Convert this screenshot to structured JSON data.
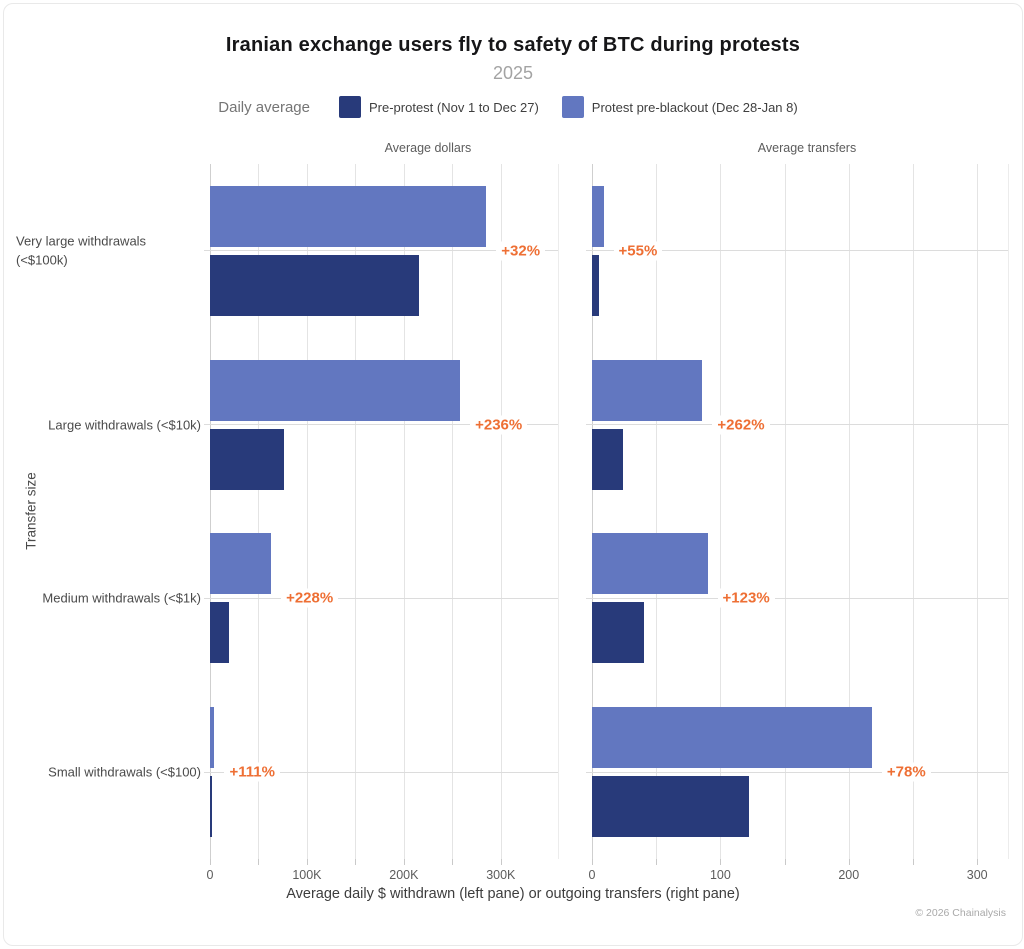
{
  "header": {
    "title": "Iranian exchange users fly to safety of BTC during protests",
    "subtitle": "2025"
  },
  "legend": {
    "label": "Daily average",
    "items": [
      {
        "label": "Pre-protest (Nov 1 to Dec 27)",
        "color": "#283a7a"
      },
      {
        "label": "Protest pre-blackout (Dec 28-Jan 8)",
        "color": "#6277c0"
      }
    ]
  },
  "chart_data": {
    "type": "bar",
    "orientation": "horizontal",
    "title": "Iranian exchange users fly to safety of BTC during protests",
    "subtitle": "2025",
    "ylabel": "Transfer size",
    "xlabel": "Average daily $ withdrawn (left pane) or outgoing transfers (right pane)",
    "grid": true,
    "legend_position": "top",
    "categories": [
      "Very large withdrawals (<$100k)",
      "Large withdrawals (<$10k)",
      "Medium withdrawals (<$1k)",
      "Small withdrawals (<$100)"
    ],
    "series_names": [
      "Pre-protest (Nov 1 to Dec 27)",
      "Protest pre-blackout (Dec 28-Jan 8)"
    ],
    "panes": [
      {
        "title": "Average dollars",
        "unit": "USD per day",
        "axis_max": 359000,
        "gridline_step": 50000,
        "gridline_max": 300000,
        "axis_ticks": [
          {
            "value": 0,
            "label": "0"
          },
          {
            "value": 100000,
            "label": "100K"
          },
          {
            "value": 200000,
            "label": "200K"
          },
          {
            "value": 300000,
            "label": "300K"
          }
        ],
        "series": [
          {
            "name": "Pre-protest (Nov 1 to Dec 27)",
            "values": [
              216000,
              76800,
              19200,
              2180
            ]
          },
          {
            "name": "Protest pre-blackout (Dec 28-Jan 8)",
            "values": [
              285000,
              258000,
              63000,
              4600
            ]
          }
        ],
        "pct_change_labels": [
          "+32%",
          "+236%",
          "+228%",
          "+111%"
        ]
      },
      {
        "title": "Average transfers",
        "unit": "transfers per day",
        "axis_max": 324,
        "gridline_step": 50,
        "gridline_max": 300,
        "axis_ticks": [
          {
            "value": 0,
            "label": "0"
          },
          {
            "value": 100,
            "label": "100"
          },
          {
            "value": 200,
            "label": "200"
          },
          {
            "value": 300,
            "label": "300"
          }
        ],
        "series": [
          {
            "name": "Pre-protest (Nov 1 to Dec 27)",
            "values": [
              5.8,
              23.8,
              40.4,
              122.5
            ]
          },
          {
            "name": "Protest pre-blackout (Dec 28-Jan 8)",
            "values": [
              9,
              86,
              90,
              218
            ]
          }
        ],
        "pct_change_labels": [
          "+55%",
          "+262%",
          "+123%",
          "+78%"
        ]
      }
    ]
  },
  "colors": {
    "pre_protest": "#283a7a",
    "protest_pre_blackout": "#6277c0",
    "pct_accent": "#ee6f34",
    "gridline": "#e4e4e4"
  },
  "footer": {
    "copyright": "© 2026 Chainalysis"
  }
}
